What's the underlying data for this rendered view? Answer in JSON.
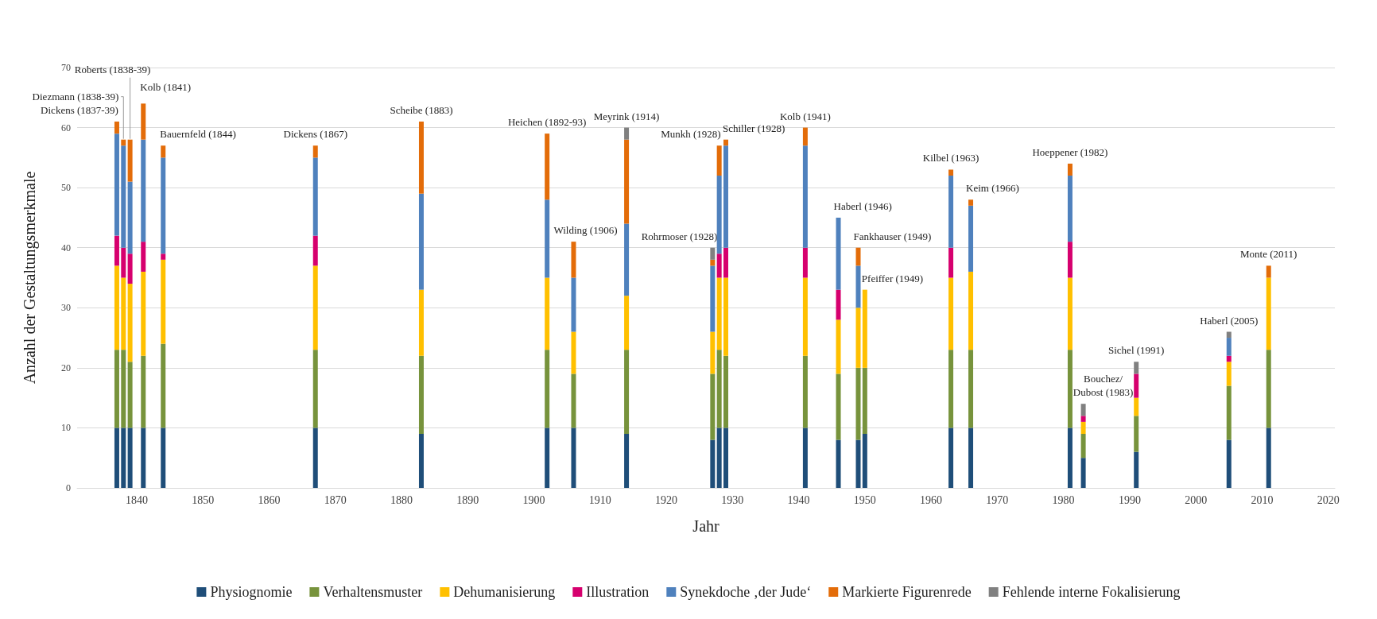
{
  "chart_data": {
    "type": "bar",
    "stacked": true,
    "xlabel": "Jahr",
    "ylabel": "Anzahl der Gestaltungsmerkmale",
    "x": [
      1837,
      1838,
      1839,
      1841,
      1844,
      1867,
      1883,
      1902,
      1906,
      1914,
      1927,
      1928,
      1929,
      1941,
      1946,
      1949,
      1950,
      1963,
      1966,
      1981,
      1983,
      1991,
      2005,
      2011
    ],
    "xlim": [
      1831,
      2021
    ],
    "xticks": [
      1840,
      1850,
      1860,
      1870,
      1880,
      1890,
      1900,
      1910,
      1920,
      1930,
      1940,
      1950,
      1960,
      1970,
      1980,
      1990,
      2000,
      2010,
      2020
    ],
    "ylim": [
      0,
      70
    ],
    "yticks": [
      0,
      10,
      20,
      30,
      40,
      50,
      60,
      70
    ],
    "grid": "y",
    "legend": "bottom",
    "series": [
      {
        "name": "Physiognomie",
        "color": "#1f4e79",
        "values": [
          10,
          10,
          10,
          10,
          10,
          10,
          9,
          10,
          10,
          9,
          8,
          10,
          10,
          10,
          8,
          8,
          9,
          10,
          10,
          10,
          5,
          6,
          8,
          10
        ]
      },
      {
        "name": "Verhaltensmuster",
        "color": "#77933c",
        "values": [
          13,
          13,
          11,
          12,
          14,
          13,
          13,
          13,
          9,
          14,
          11,
          13,
          12,
          12,
          11,
          12,
          11,
          13,
          13,
          13,
          4,
          6,
          9,
          13
        ]
      },
      {
        "name": "Dehumanisierung",
        "color": "#ffc000",
        "values": [
          14,
          12,
          13,
          14,
          14,
          14,
          11,
          12,
          7,
          9,
          7,
          12,
          13,
          13,
          9,
          10,
          13,
          12,
          13,
          12,
          2,
          3,
          4,
          12
        ]
      },
      {
        "name": "Illustration",
        "color": "#d6006e",
        "values": [
          5,
          5,
          5,
          5,
          1,
          5,
          null,
          null,
          null,
          null,
          null,
          4,
          5,
          5,
          5,
          null,
          null,
          5,
          null,
          6,
          1,
          4,
          1,
          null
        ]
      },
      {
        "name": "Synekdoche ‚der Jude‘",
        "color": "#4f81bd",
        "values": [
          17,
          17,
          12,
          17,
          16,
          13,
          16,
          13,
          9,
          12,
          11,
          13,
          17,
          17,
          12,
          7,
          null,
          12,
          11,
          11,
          null,
          null,
          3,
          null
        ]
      },
      {
        "name": "Markierte Figurenrede",
        "color": "#e36c09",
        "values": [
          2,
          1,
          7,
          6,
          2,
          2,
          12,
          11,
          6,
          14,
          1,
          5,
          1,
          3,
          null,
          3,
          null,
          1,
          1,
          2,
          null,
          null,
          null,
          2
        ]
      },
      {
        "name": "Fehlende interne Fokalisierung",
        "color": "#808080",
        "values": [
          null,
          null,
          null,
          null,
          null,
          null,
          null,
          null,
          null,
          2,
          2,
          null,
          null,
          null,
          null,
          null,
          null,
          null,
          null,
          null,
          2,
          2,
          1,
          null
        ]
      }
    ],
    "annotations": [
      {
        "text": "Dickens (1837-39)",
        "x": 1837,
        "y": 61
      },
      {
        "text": "Diezmann (1838-39)",
        "x": 1838,
        "y": 58
      },
      {
        "text": "Roberts (1838-39)",
        "x": 1839,
        "y": 58
      },
      {
        "text": "Kolb (1841)",
        "x": 1841,
        "y": 64
      },
      {
        "text": "Bauernfeld (1844)",
        "x": 1844,
        "y": 57
      },
      {
        "text": "Dickens (1867)",
        "x": 1867,
        "y": 57
      },
      {
        "text": "Scheibe (1883)",
        "x": 1883,
        "y": 61
      },
      {
        "text": "Heichen (1892-93)",
        "x": 1902,
        "y": 59
      },
      {
        "text": "Wilding (1906)",
        "x": 1906,
        "y": 41
      },
      {
        "text": "Meyrink (1914)",
        "x": 1914,
        "y": 60
      },
      {
        "text": "Rohrmoser (1928)",
        "x": 1927,
        "y": 40
      },
      {
        "text": "Munkh (1928)",
        "x": 1928,
        "y": 57
      },
      {
        "text": "Schiller (1928)",
        "x": 1929,
        "y": 58
      },
      {
        "text": "Kolb (1941)",
        "x": 1941,
        "y": 60
      },
      {
        "text": "Haberl (1946)",
        "x": 1946,
        "y": 45
      },
      {
        "text": "Fankhauser (1949)",
        "x": 1949,
        "y": 40
      },
      {
        "text": "Pfeiffer (1949)",
        "x": 1950,
        "y": 33
      },
      {
        "text": "Kilbel (1963)",
        "x": 1963,
        "y": 53
      },
      {
        "text": "Keim (1966)",
        "x": 1966,
        "y": 48
      },
      {
        "text": "Hoeppener (1982)",
        "x": 1981,
        "y": 54
      },
      {
        "text": "Bouchez/\nDubost (1983)",
        "x": 1983,
        "y": 14
      },
      {
        "text": "Sichel (1991)",
        "x": 1991,
        "y": 21
      },
      {
        "text": "Haberl (2005)",
        "x": 2005,
        "y": 26
      },
      {
        "text": "Monte (2011)",
        "x": 2011,
        "y": 37
      }
    ]
  }
}
